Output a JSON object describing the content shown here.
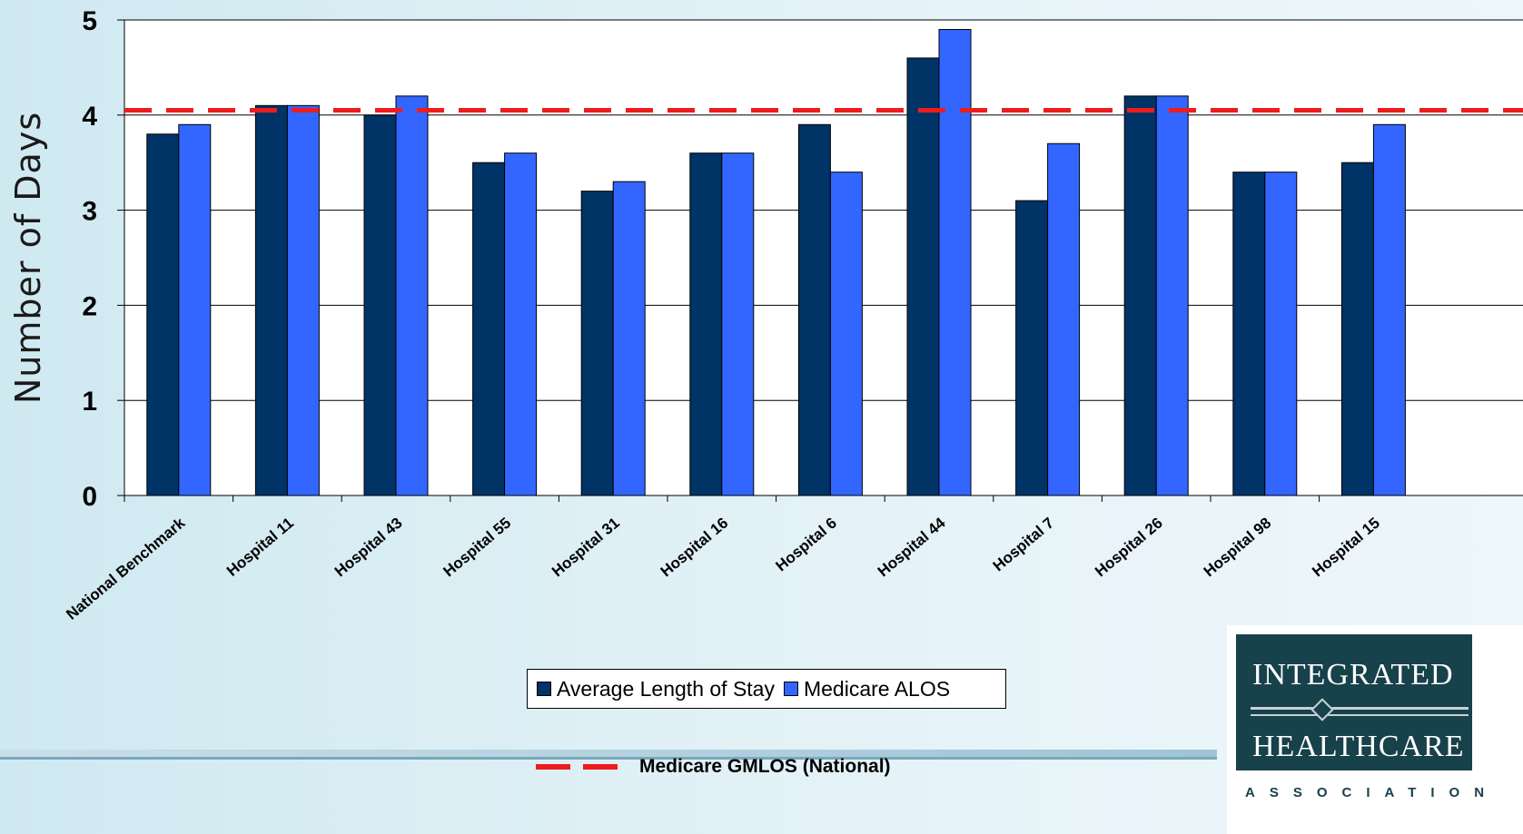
{
  "chart_data": {
    "type": "bar",
    "ylabel": "Number of Days",
    "ylim": [
      0,
      5
    ],
    "yticks": [
      "0",
      "1",
      "2",
      "3",
      "4",
      "5"
    ],
    "categories": [
      "National Benchmark",
      "Hospital 11",
      "Hospital 43",
      "Hospital 55",
      "Hospital 31",
      "Hospital 16",
      "Hospital 6",
      "Hospital 44",
      "Hospital 7",
      "Hospital 26",
      "Hospital 98",
      "Hospital 15"
    ],
    "series": [
      {
        "name": "Average Length of Stay",
        "color": "#003366",
        "values": [
          3.8,
          4.1,
          4.0,
          3.5,
          3.2,
          3.6,
          3.9,
          4.6,
          3.1,
          4.2,
          3.4,
          3.5
        ]
      },
      {
        "name": "Medicare ALOS",
        "color": "#3366ff",
        "values": [
          3.9,
          4.1,
          4.2,
          3.6,
          3.3,
          3.6,
          3.4,
          4.9,
          3.7,
          4.2,
          3.4,
          3.9
        ]
      }
    ],
    "reference_line": {
      "name": "Medicare GMLOS (National)",
      "value": 4.05,
      "color": "#ee1c1c",
      "style": "dashed"
    },
    "grid": true,
    "legend_position": "bottom"
  },
  "logo": {
    "line1": "INTEGRATED",
    "line2": "HEALTHCARE",
    "line3": "ASSOCIATION"
  }
}
